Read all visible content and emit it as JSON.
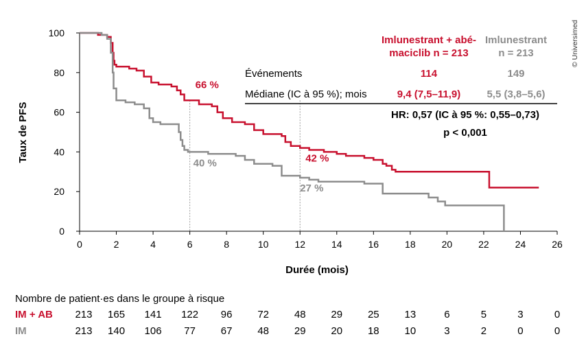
{
  "chart_data": {
    "type": "line",
    "subtype": "kaplan-meier",
    "ylabel": "Taux de PFS",
    "xlabel": "Durée (mois)",
    "xlim": [
      0,
      26
    ],
    "ylim": [
      0,
      100
    ],
    "xticks": [
      "0",
      "2",
      "4",
      "6",
      "8",
      "10",
      "12",
      "14",
      "16",
      "18",
      "20",
      "22",
      "24",
      "26"
    ],
    "yticks": [
      "0",
      "20",
      "40",
      "60",
      "80",
      "100"
    ],
    "grid": false,
    "series": [
      {
        "name": "Imlunestrant + abémaciclib",
        "color": "#c8102e",
        "x": [
          0,
          1.0,
          1.5,
          1.7,
          1.8,
          1.85,
          1.9,
          2.0,
          2.7,
          3.1,
          3.5,
          3.9,
          4.3,
          5.0,
          5.3,
          5.5,
          5.7,
          6.0,
          6.5,
          7.2,
          7.5,
          7.8,
          8.3,
          9.0,
          9.5,
          10.0,
          10.6,
          11.0,
          11.2,
          11.5,
          12.0,
          12.5,
          13.3,
          14.0,
          14.5,
          15.0,
          15.5,
          16.0,
          16.5,
          16.7,
          17.0,
          17.2,
          17.5,
          22.2,
          22.3,
          25.0
        ],
        "y": [
          100,
          99,
          98,
          95,
          90,
          86,
          84,
          83,
          82,
          81,
          78,
          75,
          74,
          73,
          71,
          69,
          66,
          66,
          64,
          63,
          60,
          57,
          55,
          54,
          51,
          49,
          49,
          48,
          45,
          43,
          42,
          41,
          40,
          39,
          38,
          38,
          37,
          36,
          34,
          33,
          31,
          30,
          30,
          30,
          22,
          22
        ]
      },
      {
        "name": "Imlunestrant",
        "color": "#8c8c8c",
        "x": [
          0,
          1.2,
          1.5,
          1.7,
          1.8,
          1.85,
          2.0,
          2.5,
          3.0,
          3.5,
          3.8,
          4.0,
          4.4,
          5.0,
          5.4,
          5.5,
          5.6,
          5.7,
          5.9,
          6.0,
          7.0,
          8.5,
          9.0,
          9.5,
          10.5,
          11.0,
          12.0,
          12.5,
          13.0,
          15.5,
          16.3,
          16.5,
          16.7,
          19.0,
          19.5,
          19.9,
          20.3,
          23.0,
          23.1
        ],
        "y": [
          100,
          99,
          97,
          90,
          80,
          72,
          66,
          65,
          64,
          62,
          57,
          55,
          54,
          54,
          50,
          46,
          43,
          41,
          40,
          40,
          39,
          38,
          36,
          34,
          33,
          28,
          27,
          26,
          25,
          24,
          24,
          19,
          19,
          17,
          15,
          13,
          13,
          13,
          0
        ]
      }
    ],
    "reference_lines": [
      {
        "x": 6,
        "label": "6"
      },
      {
        "x": 12,
        "label": "12"
      }
    ],
    "annotations": [
      {
        "text": "66 %",
        "series": 0,
        "x": 6,
        "y": 66
      },
      {
        "text": "40 %",
        "series": 1,
        "x": 6,
        "y": 40
      },
      {
        "text": "42 %",
        "series": 0,
        "x": 12,
        "y": 42
      },
      {
        "text": "27 %",
        "series": 1,
        "x": 12,
        "y": 27
      }
    ]
  },
  "summary_table": {
    "col1_header_line1": "Imlunestrant + abé-",
    "col1_header_line2": "maciclib n = 213",
    "col2_header_line1": "Imlunestrant",
    "col2_header_line2": "n = 213",
    "events_label": "Événements",
    "events_col1": "114",
    "events_col2": "149",
    "median_label": "Médiane (IC à 95 %); mois",
    "median_col1": "9,4 (7,5–11,9)",
    "median_col2": "5,5 (3,8–5,6)",
    "hr_text": "HR: 0,57 (IC à 95 %: 0,55–0,73)",
    "p_text": "p < 0,001"
  },
  "risk_table": {
    "title": "Nombre de patient·es dans le groupe à risque",
    "rows": [
      {
        "label": "IM + AB",
        "color": "#c8102e",
        "values": [
          "213",
          "165",
          "141",
          "122",
          "96",
          "72",
          "48",
          "29",
          "25",
          "13",
          "6",
          "5",
          "3",
          "0"
        ]
      },
      {
        "label": "IM",
        "color": "#8c8c8c",
        "values": [
          "213",
          "140",
          "106",
          "77",
          "67",
          "48",
          "29",
          "20",
          "18",
          "10",
          "3",
          "2",
          "0",
          "0"
        ]
      }
    ]
  },
  "copyright": "© Universimed",
  "colors": {
    "red": "#c8102e",
    "gray": "#8c8c8c",
    "axis": "#000000",
    "dash": "#9a9a9a"
  }
}
